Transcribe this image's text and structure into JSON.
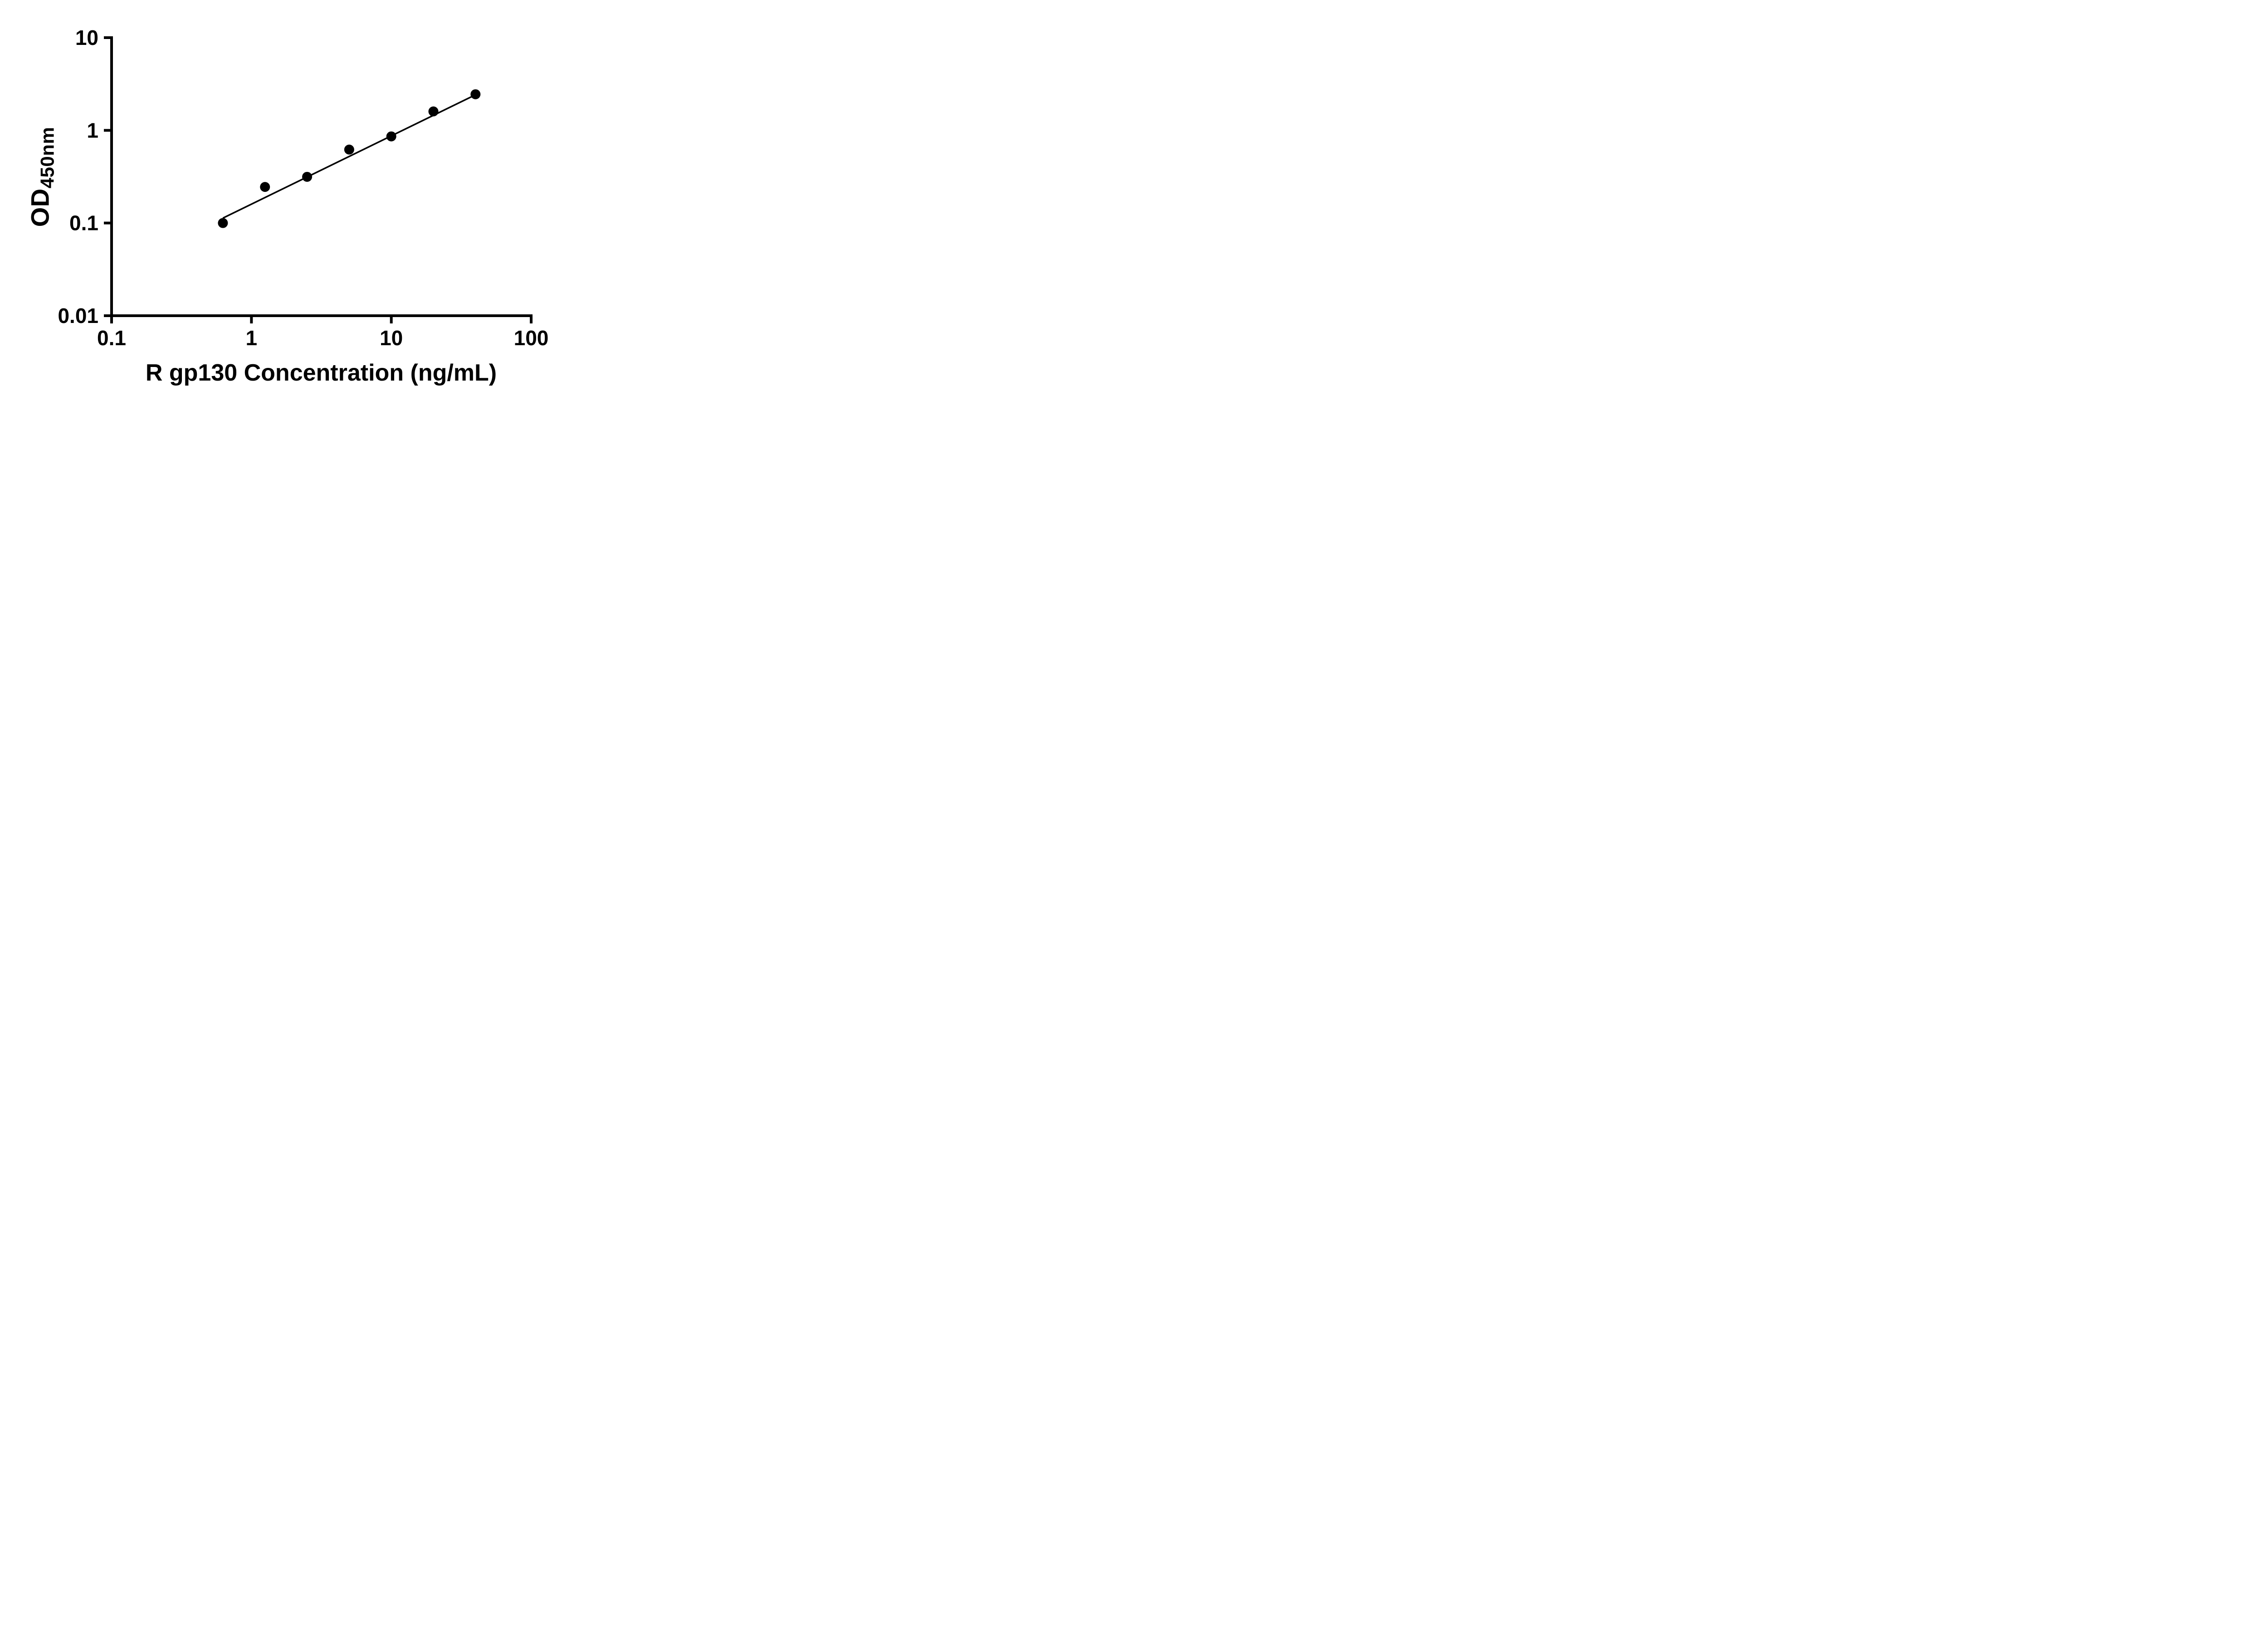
{
  "chart_data": {
    "type": "scatter",
    "title": "",
    "xlabel": "R gp130 Concentration (ng/mL)",
    "ylabel_main": "OD",
    "ylabel_sub": "450nm",
    "x_scale": "log",
    "y_scale": "log",
    "xlim": [
      0.1,
      100
    ],
    "ylim": [
      0.01,
      10
    ],
    "grid": false,
    "legend": false,
    "x_ticks": [
      {
        "value": 0.1,
        "label": "0.1"
      },
      {
        "value": 1,
        "label": "1"
      },
      {
        "value": 10,
        "label": "10"
      },
      {
        "value": 100,
        "label": "100"
      }
    ],
    "y_ticks": [
      {
        "value": 0.01,
        "label": "0.01"
      },
      {
        "value": 0.1,
        "label": "0.1"
      },
      {
        "value": 1,
        "label": "1"
      },
      {
        "value": 10,
        "label": "10"
      }
    ],
    "series": [
      {
        "marker": "circle",
        "points": [
          {
            "x": 0.625,
            "y": 0.1
          },
          {
            "x": 1.25,
            "y": 0.245
          },
          {
            "x": 2.5,
            "y": 0.315
          },
          {
            "x": 5,
            "y": 0.62
          },
          {
            "x": 10,
            "y": 0.86
          },
          {
            "x": 20,
            "y": 1.6
          },
          {
            "x": 40,
            "y": 2.45
          }
        ]
      }
    ],
    "trend_line": {
      "x1": 0.625,
      "y1": 0.113,
      "x2": 40,
      "y2": 2.42
    },
    "colors": {
      "axis": "#000000",
      "marker": "#000000",
      "line": "#000000",
      "text": "#000000",
      "background": "#ffffff"
    }
  }
}
